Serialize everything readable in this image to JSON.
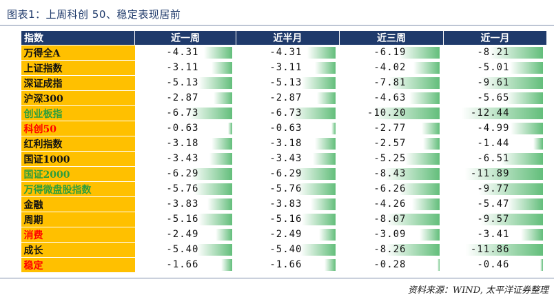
{
  "title": "图表1：上周科创 50、稳定表现居前",
  "source": "资料来源：WIND, 太平洋证券整理",
  "colors": {
    "header_bg": "#1f3a6b",
    "name_bg": "#ffc000",
    "bar_green": "#63be7b",
    "name_black": "#111111",
    "name_green": "#2e9e3b",
    "name_red": "#ff0000"
  },
  "chart_data": {
    "type": "table",
    "columns": [
      "指数",
      "近一周",
      "近半月",
      "近三周",
      "近一月"
    ],
    "bar_domain": [
      -12.44,
      0
    ],
    "rows": [
      {
        "name": "万得全A",
        "color": "black",
        "values": [
          -4.31,
          -4.31,
          -6.19,
          -8.21
        ]
      },
      {
        "name": "上证指数",
        "color": "black",
        "values": [
          -3.11,
          -3.11,
          -4.02,
          -5.01
        ]
      },
      {
        "name": "深证成指",
        "color": "black",
        "values": [
          -5.13,
          -5.13,
          -7.81,
          -9.61
        ]
      },
      {
        "name": "沪深300",
        "color": "black",
        "values": [
          -2.87,
          -2.87,
          -4.63,
          -5.65
        ]
      },
      {
        "name": "创业板指",
        "color": "green",
        "values": [
          -6.73,
          -6.73,
          -10.2,
          -12.44
        ]
      },
      {
        "name": "科创50",
        "color": "red",
        "values": [
          -0.63,
          -0.63,
          -2.77,
          -4.99
        ]
      },
      {
        "name": "红利指数",
        "color": "black",
        "values": [
          -3.18,
          -3.18,
          -2.57,
          -1.44
        ]
      },
      {
        "name": "国证1000",
        "color": "black",
        "values": [
          -3.43,
          -3.43,
          -5.25,
          -6.51
        ]
      },
      {
        "name": "国证2000",
        "color": "green",
        "values": [
          -6.29,
          -6.29,
          -8.43,
          -11.89
        ]
      },
      {
        "name": "万得微盘股指数",
        "color": "green",
        "values": [
          -5.76,
          -5.76,
          -6.26,
          -9.77
        ]
      },
      {
        "name": "金融",
        "color": "black",
        "values": [
          -3.83,
          -3.83,
          -4.26,
          -5.47
        ]
      },
      {
        "name": "周期",
        "color": "black",
        "values": [
          -5.16,
          -5.16,
          -8.07,
          -9.57
        ]
      },
      {
        "name": "消费",
        "color": "red",
        "values": [
          -2.49,
          -2.49,
          -3.09,
          -3.41
        ]
      },
      {
        "name": "成长",
        "color": "black",
        "values": [
          -5.4,
          -5.4,
          -8.26,
          -11.86
        ]
      },
      {
        "name": "稳定",
        "color": "red",
        "values": [
          -1.66,
          -1.66,
          -0.28,
          -0.46
        ]
      }
    ]
  }
}
